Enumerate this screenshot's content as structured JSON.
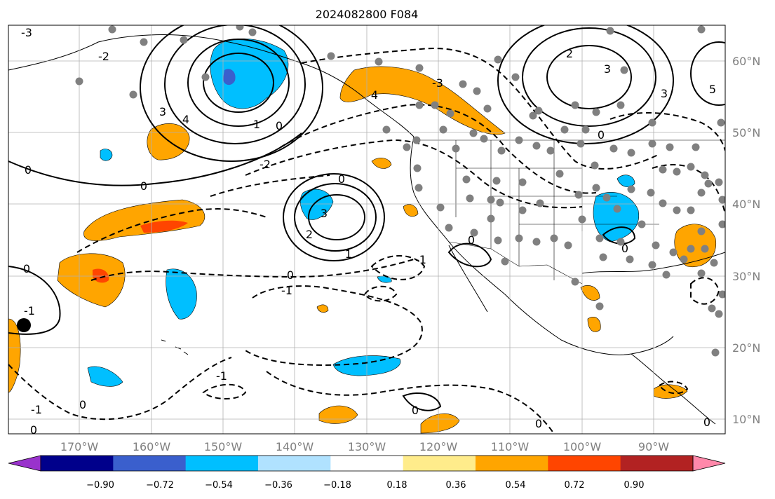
{
  "title": "2024082800 F084",
  "map": {
    "lon_labels": [
      "170°W",
      "160°W",
      "150°W",
      "140°W",
      "130°W",
      "120°W",
      "110°W",
      "100°W",
      "90°W"
    ],
    "lat_labels": [
      "60°N",
      "50°N",
      "40°N",
      "30°N",
      "20°N",
      "10°N"
    ],
    "contour_labels": [
      "-3",
      "-2",
      "-1",
      "0",
      "1",
      "2",
      "3",
      "4",
      "5"
    ]
  },
  "colorbar": {
    "ticks": [
      "−0.90",
      "−0.72",
      "−0.54",
      "−0.36",
      "−0.18",
      "0.18",
      "0.36",
      "0.54",
      "0.72",
      "0.90"
    ],
    "colors": [
      "#9932cc",
      "#00008b",
      "#3a5fcd",
      "#00bfff",
      "#b0e2ff",
      "#ffffff",
      "#ffec8b",
      "#ffa500",
      "#ff4500",
      "#b22222",
      "#ff88aa"
    ]
  },
  "colors": {
    "land_line": "#000000",
    "grid": "#b0b0b0",
    "station_dot": "#808080",
    "tick_text": "#808080"
  }
}
